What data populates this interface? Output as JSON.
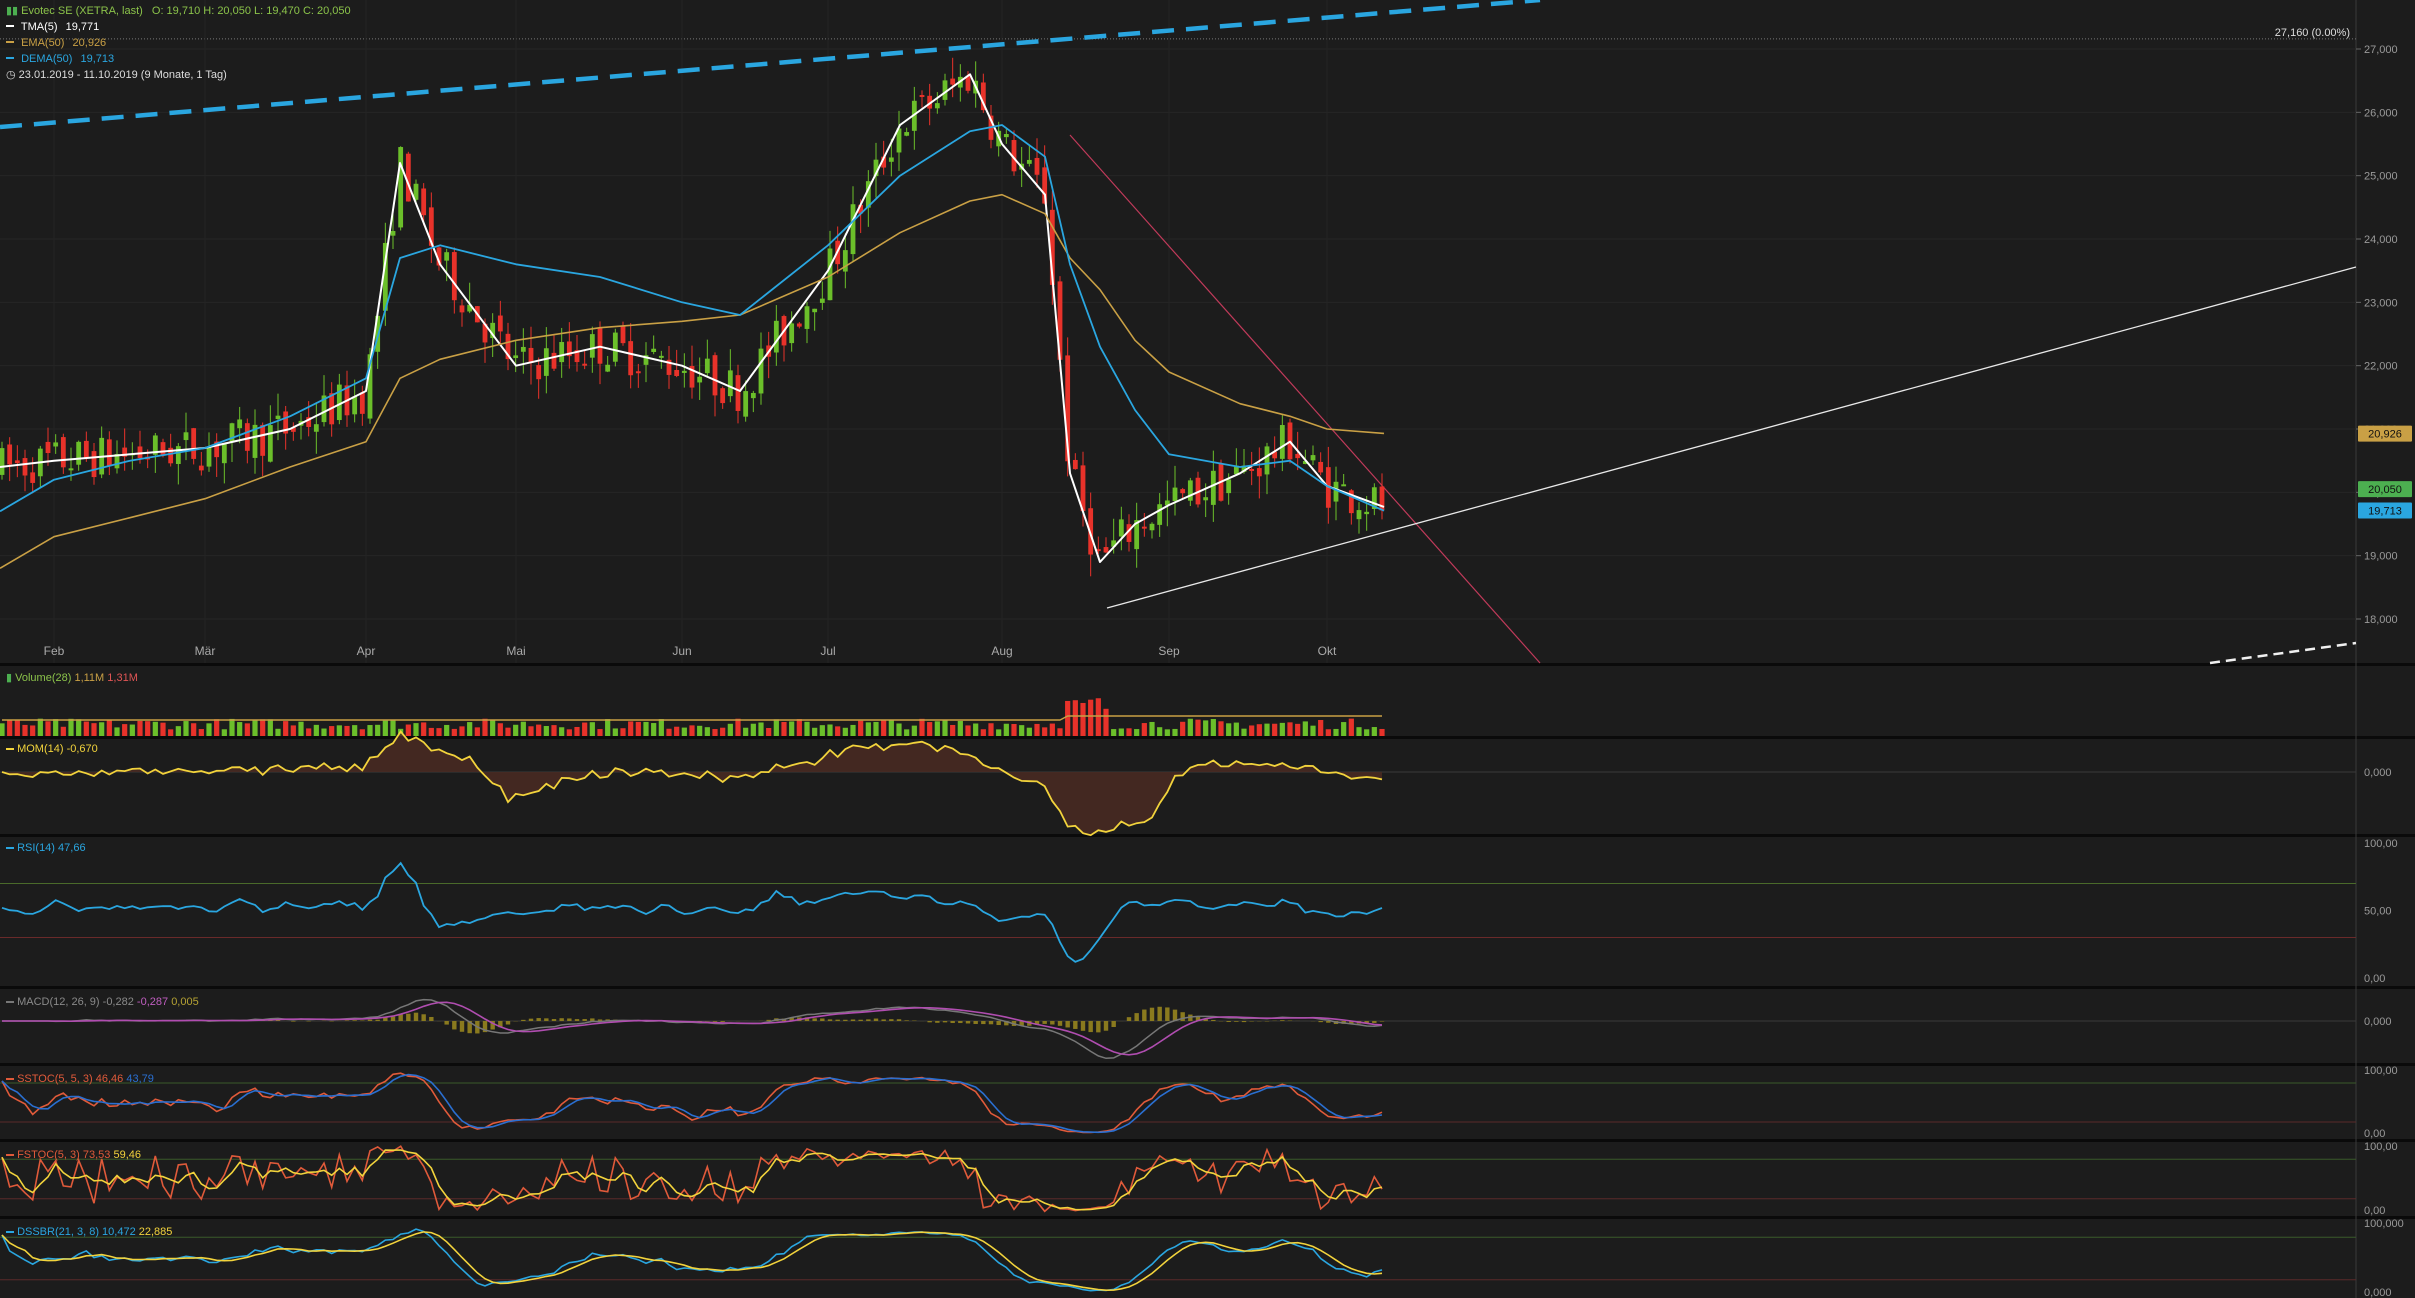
{
  "header": {
    "title": "Evotec SE (XETRA, last)",
    "ohlc": "O: 19,710   H: 20,050   L: 19,470   C: 20,050",
    "indicators": [
      {
        "label": "TMA(5)",
        "value": "19,771",
        "color": "#ffffff"
      },
      {
        "label": "EMA(50)",
        "value": "20,926",
        "color": "#c9a045"
      },
      {
        "label": "DEMA(50)",
        "value": "19,713",
        "color": "#2aa6e0"
      }
    ],
    "range": "23.01.2019 - 11.10.2019   (9 Monate, 1 Tag)"
  },
  "price_axis": {
    "ticks": [
      "27,000",
      "26,000",
      "25,000",
      "24,000",
      "23,000",
      "22,000",
      "21,000",
      "20,000",
      "19,000",
      "18,000"
    ],
    "high_marker": "27,160 (0.00%)",
    "badges": [
      {
        "text": "20,926",
        "color": "#c9a045"
      },
      {
        "text": "20,050",
        "color": "#4caf50"
      },
      {
        "text": "19,713",
        "color": "#2aa6e0"
      }
    ]
  },
  "months": [
    "Feb",
    "Mär",
    "Apr",
    "Mai",
    "Jun",
    "Jul",
    "Aug",
    "Sep",
    "Okt"
  ],
  "panels": {
    "volume": {
      "label": "Volume(28)",
      "v1": "1,11M",
      "v2": "1,31M"
    },
    "mom": {
      "label": "MOM(14)",
      "value": "-0,670",
      "ticks": [
        "0,000"
      ]
    },
    "rsi": {
      "label": "RSI(14)",
      "value": "47,66",
      "ticks": [
        "100,00",
        "50,00",
        "0,00"
      ]
    },
    "macd": {
      "label": "MACD(12, 26, 9)",
      "v1": "-0,282",
      "v2": "-0,287",
      "v3": "0,005",
      "ticks": [
        "0,000"
      ]
    },
    "sstoc": {
      "label": "SSTOC(5, 5, 3)",
      "v1": "46,46",
      "v2": "43,79",
      "ticks": [
        "100,00",
        "0,00"
      ]
    },
    "fstoc": {
      "label": "FSTOC(5, 3)",
      "v1": "73,53",
      "v2": "59,46",
      "ticks": [
        "100,00",
        "0,00"
      ]
    },
    "dssbr": {
      "label": "DSSBR(21, 3, 8)",
      "v1": "10,472",
      "v2": "22,885",
      "ticks": [
        "100,000",
        "0,000"
      ]
    }
  },
  "chart_data": {
    "type": "line",
    "title": "Evotec SE (XETRA, last)",
    "xlabel": "",
    "ylabel": "",
    "ylim": [
      17.5,
      27.2
    ],
    "x": [
      "Jan-23",
      "Feb",
      "Feb-15",
      "Mär",
      "Mär-15",
      "Apr",
      "Apr-08",
      "Apr-15",
      "Mai",
      "Mai-15",
      "Jun",
      "Jun-15",
      "Jul",
      "Jul-15",
      "Jul-25",
      "Aug",
      "Aug-08",
      "Aug-13",
      "Aug-15",
      "Aug-19",
      "Sep",
      "Sep-15",
      "Sep-23",
      "Okt",
      "Okt-11"
    ],
    "series": [
      {
        "name": "TMA(5)",
        "values": [
          20.4,
          20.5,
          20.6,
          20.7,
          21.0,
          21.6,
          25.2,
          23.6,
          22.0,
          22.3,
          22.0,
          21.6,
          23.5,
          25.8,
          26.6,
          25.5,
          24.7,
          20.3,
          18.9,
          19.5,
          19.8,
          20.3,
          20.8,
          20.1,
          19.77
        ]
      },
      {
        "name": "EMA(50)",
        "values": [
          18.8,
          19.3,
          19.6,
          19.9,
          20.4,
          20.8,
          21.8,
          22.1,
          22.4,
          22.6,
          22.7,
          22.8,
          23.4,
          24.1,
          24.6,
          24.7,
          24.4,
          23.7,
          23.2,
          22.4,
          21.9,
          21.4,
          21.2,
          21.0,
          20.93
        ]
      },
      {
        "name": "DEMA(50)",
        "values": [
          19.7,
          20.2,
          20.5,
          20.7,
          21.2,
          21.8,
          23.7,
          23.9,
          23.6,
          23.4,
          23.0,
          22.8,
          23.9,
          25.0,
          25.7,
          25.8,
          25.3,
          23.6,
          22.3,
          21.3,
          20.6,
          20.4,
          20.5,
          20.1,
          19.71
        ]
      }
    ],
    "trendlines": [
      {
        "name": "upper-blue-dashed",
        "from": [
          "Jan-23",
          25.8
        ],
        "to": [
          "Okt-11",
          28.4
        ]
      },
      {
        "name": "red-resistance",
        "from": [
          "Aug-08",
          25.7
        ],
        "to": [
          "Okt-11",
          17.7
        ]
      },
      {
        "name": "white-support",
        "from": [
          "Aug-15",
          18.2
        ],
        "to": [
          "Okt-11",
          19.6
        ]
      }
    ],
    "last_close": 20.05,
    "high": 27.16
  }
}
